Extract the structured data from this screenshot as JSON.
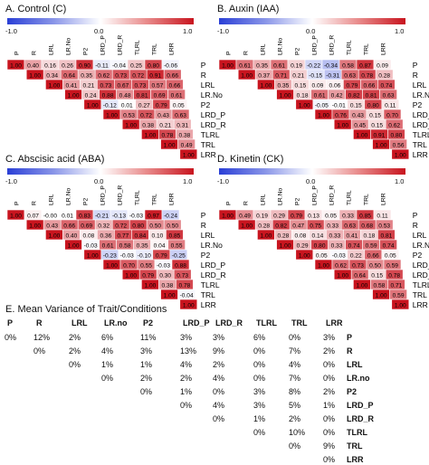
{
  "colors": {
    "neg": "#2a3fd6",
    "zero": "#ffffff",
    "pos": "#c8141e",
    "diag": "#c8141e"
  },
  "labels": [
    "P",
    "R",
    "LRL",
    "LR.No",
    "P2",
    "LRD_P",
    "LRD_R",
    "TLRL",
    "TRL",
    "LRR"
  ],
  "row_labels": [
    "P",
    "R",
    "LRL",
    "LR.No",
    "P2",
    "LRD_P",
    "LRD_R",
    "TLRL",
    "TRL",
    "LRR"
  ],
  "colorbar": {
    "min": "-1.0",
    "mid": "0.0",
    "max": "1.0"
  },
  "chart_data": [
    {
      "type": "heatmap",
      "title": "A. Control (C)",
      "values": [
        [
          "1.00",
          "0.40",
          "0.16",
          "0.26",
          "0.90",
          "-0.11",
          "-0.04",
          "0.25",
          "0.80",
          "-0.06"
        ],
        [
          "",
          "1.00",
          "0.34",
          "0.64",
          "0.35",
          "0.62",
          "0.73",
          "0.72",
          "0.91",
          "0.66"
        ],
        [
          "",
          "",
          "1.00",
          "0.41",
          "0.21",
          "0.73",
          "0.67",
          "0.73",
          "0.57",
          "0.66"
        ],
        [
          "",
          "",
          "",
          "1.00",
          "0.24",
          "0.88",
          "0.48",
          "0.81",
          "0.69",
          "0.61"
        ],
        [
          "",
          "",
          "",
          "",
          "1.00",
          "-0.12",
          "0.01",
          "0.27",
          "0.79",
          "0.05"
        ],
        [
          "",
          "",
          "",
          "",
          "",
          "1.00",
          "0.53",
          "0.72",
          "0.43",
          "0.63"
        ],
        [
          "",
          "",
          "",
          "",
          "",
          "",
          "1.00",
          "0.38",
          "0.21",
          "0.31"
        ],
        [
          "",
          "",
          "",
          "",
          "",
          "",
          "",
          "1.00",
          "0.78",
          "0.38"
        ],
        [
          "",
          "",
          "",
          "",
          "",
          "",
          "",
          "",
          "1.00",
          "0.49"
        ],
        [
          "",
          "",
          "",
          "",
          "",
          "",
          "",
          "",
          "",
          "1.00"
        ]
      ]
    },
    {
      "type": "heatmap",
      "title": "B. Auxin (IAA)",
      "values": [
        [
          "1.00",
          "0.61",
          "0.35",
          "0.61",
          "0.19",
          "-0.22",
          "-0.34",
          "0.58",
          "0.87",
          "0.09"
        ],
        [
          "",
          "1.00",
          "0.37",
          "0.71",
          "0.21",
          "-0.15",
          "-0.31",
          "0.63",
          "0.78",
          "0.28"
        ],
        [
          "",
          "",
          "1.00",
          "0.35",
          "0.15",
          "0.09",
          "0.06",
          "0.79",
          "0.66",
          "0.74"
        ],
        [
          "",
          "",
          "",
          "1.00",
          "0.18",
          "0.61",
          "0.42",
          "0.82",
          "0.81",
          "0.63"
        ],
        [
          "",
          "",
          "",
          "",
          "1.00",
          "-0.05",
          "-0.01",
          "0.15",
          "0.80",
          "0.11"
        ],
        [
          "",
          "",
          "",
          "",
          "",
          "1.00",
          "0.76",
          "0.43",
          "0.15",
          "0.70"
        ],
        [
          "",
          "",
          "",
          "",
          "",
          "",
          "1.00",
          "0.45",
          "0.15",
          "0.62"
        ],
        [
          "",
          "",
          "",
          "",
          "",
          "",
          "",
          "1.00",
          "0.91",
          "0.80"
        ],
        [
          "",
          "",
          "",
          "",
          "",
          "",
          "",
          "",
          "1.00",
          "0.56"
        ],
        [
          "",
          "",
          "",
          "",
          "",
          "",
          "",
          "",
          "",
          "1.00"
        ]
      ]
    },
    {
      "type": "heatmap",
      "title": "C. Abscisic acid (ABA)",
      "values": [
        [
          "1.00",
          "0.07",
          "-0.00",
          "0.01",
          "0.83",
          "-0.21",
          "-0.13",
          "-0.03",
          "0.97",
          "-0.24"
        ],
        [
          "",
          "1.00",
          "0.43",
          "0.66",
          "0.69",
          "0.32",
          "0.72",
          "0.80",
          "0.50",
          "0.50"
        ],
        [
          "",
          "",
          "1.00",
          "0.40",
          "0.08",
          "0.36",
          "0.77",
          "0.84",
          "0.10",
          "0.85"
        ],
        [
          "",
          "",
          "",
          "1.00",
          "-0.03",
          "0.61",
          "0.58",
          "0.35",
          "0.04",
          "0.55"
        ],
        [
          "",
          "",
          "",
          "",
          "1.00",
          "-0.23",
          "-0.03",
          "-0.10",
          "0.79",
          "-0.25"
        ],
        [
          "",
          "",
          "",
          "",
          "",
          "1.00",
          "0.70",
          "0.55",
          "-0.03",
          "0.88"
        ],
        [
          "",
          "",
          "",
          "",
          "",
          "",
          "1.00",
          "0.79",
          "0.30",
          "0.73"
        ],
        [
          "",
          "",
          "",
          "",
          "",
          "",
          "",
          "1.00",
          "0.38",
          "0.78"
        ],
        [
          "",
          "",
          "",
          "",
          "",
          "",
          "",
          "",
          "1.00",
          "-0.04"
        ],
        [
          "",
          "",
          "",
          "",
          "",
          "",
          "",
          "",
          "",
          "1.00"
        ]
      ]
    },
    {
      "type": "heatmap",
      "title": "D. Kinetin (CK)",
      "values": [
        [
          "1.00",
          "0.49",
          "0.19",
          "0.29",
          "0.79",
          "0.13",
          "0.05",
          "0.33",
          "0.85",
          "0.11"
        ],
        [
          "",
          "1.00",
          "0.28",
          "0.82",
          "0.47",
          "0.75",
          "0.33",
          "0.63",
          "0.68",
          "0.53"
        ],
        [
          "",
          "",
          "1.00",
          "0.28",
          "0.08",
          "0.14",
          "0.33",
          "0.41",
          "0.18",
          "0.81"
        ],
        [
          "",
          "",
          "",
          "1.00",
          "0.29",
          "0.80",
          "0.33",
          "0.74",
          "0.59",
          "0.74"
        ],
        [
          "",
          "",
          "",
          "",
          "1.00",
          "0.05",
          "-0.03",
          "0.22",
          "0.66",
          "0.05"
        ],
        [
          "",
          "",
          "",
          "",
          "",
          "1.00",
          "0.62",
          "0.73",
          "0.50",
          "0.59"
        ],
        [
          "",
          "",
          "",
          "",
          "",
          "",
          "1.00",
          "0.64",
          "0.15",
          "0.78"
        ],
        [
          "",
          "",
          "",
          "",
          "",
          "",
          "",
          "1.00",
          "0.58",
          "0.71"
        ],
        [
          "",
          "",
          "",
          "",
          "",
          "",
          "",
          "",
          "1.00",
          "0.59"
        ],
        [
          "",
          "",
          "",
          "",
          "",
          "",
          "",
          "",
          "",
          "1.00"
        ]
      ]
    },
    {
      "type": "table",
      "title": "E. Mean Variance of Trait/Conditions",
      "columns": [
        "P",
        "R",
        "LRL",
        "LR.no",
        "P2",
        "LRD_P",
        "LRD_R",
        "TLRL",
        "TRL",
        "LRR"
      ],
      "rows": [
        "P",
        "R",
        "LRL",
        "LR.no",
        "P2",
        "LRD_P",
        "LRD_R",
        "TLRL",
        "TRL",
        "LRR"
      ],
      "cells": [
        [
          "0%",
          "12%",
          "2%",
          "6%",
          "11%",
          "3%",
          "3%",
          "6%",
          "0%",
          "3%"
        ],
        [
          "",
          "0%",
          "2%",
          "4%",
          "3%",
          "13%",
          "9%",
          "0%",
          "7%",
          "2%"
        ],
        [
          "",
          "",
          "0%",
          "1%",
          "1%",
          "4%",
          "2%",
          "0%",
          "4%",
          "0%"
        ],
        [
          "",
          "",
          "",
          "0%",
          "2%",
          "2%",
          "4%",
          "0%",
          "7%",
          "0%"
        ],
        [
          "",
          "",
          "",
          "",
          "0%",
          "1%",
          "0%",
          "3%",
          "8%",
          "2%"
        ],
        [
          "",
          "",
          "",
          "",
          "",
          "0%",
          "4%",
          "3%",
          "5%",
          "1%"
        ],
        [
          "",
          "",
          "",
          "",
          "",
          "",
          "0%",
          "1%",
          "2%",
          "0%"
        ],
        [
          "",
          "",
          "",
          "",
          "",
          "",
          "",
          "0%",
          "10%",
          "0%"
        ],
        [
          "",
          "",
          "",
          "",
          "",
          "",
          "",
          "",
          "0%",
          "9%"
        ],
        [
          "",
          "",
          "",
          "",
          "",
          "",
          "",
          "",
          "",
          "0%"
        ]
      ]
    }
  ]
}
